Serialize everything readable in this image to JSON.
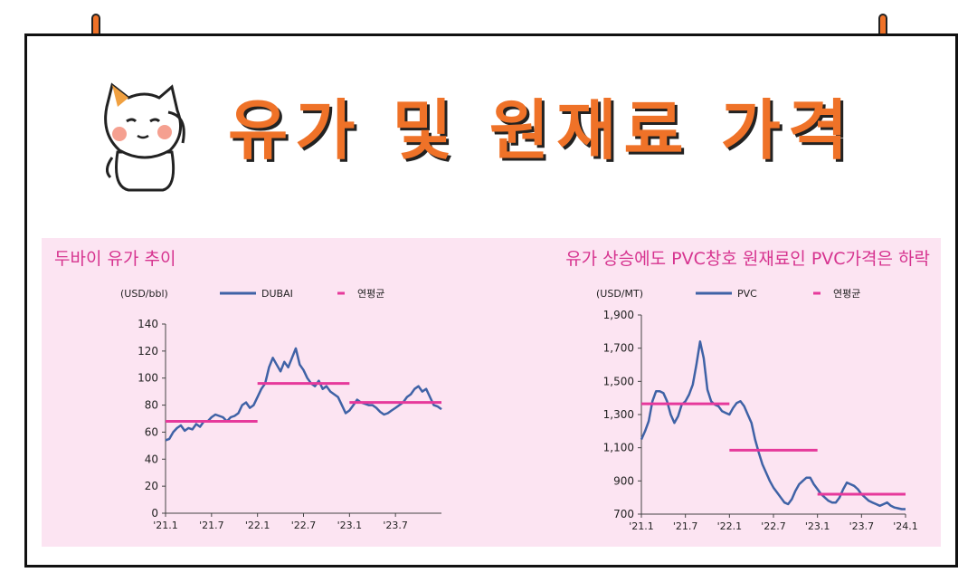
{
  "page": {
    "title": "유가 및 원재료 가격"
  },
  "theme": {
    "accent": "#ef7228",
    "panel_bg": "#fce4f2",
    "panel_title_color": "#d6338f",
    "line_color": "#3f62a6",
    "avg_color": "#e6399b"
  },
  "icons": {
    "pins": "pushpin-icon",
    "mascot": "cat-mascot-icon"
  },
  "chart_data": [
    {
      "type": "line",
      "title": "두바이 유가 추이",
      "unit_label": "(USD/bbl)",
      "legend": [
        "DUBAI",
        "연평균"
      ],
      "ylim": [
        0,
        140
      ],
      "yticks": [
        "0",
        "20",
        "40",
        "60",
        "80",
        "100",
        "120",
        "140"
      ],
      "xlim": [
        0,
        36
      ],
      "xticks": [
        {
          "label": "'21.1",
          "x": 0
        },
        {
          "label": "'21.7",
          "x": 6
        },
        {
          "label": "'22.1",
          "x": 12
        },
        {
          "label": "'22.7",
          "x": 18
        },
        {
          "label": "'23.1",
          "x": 24
        },
        {
          "label": "'23.7",
          "x": 30
        }
      ],
      "series": [
        {
          "name": "DUBAI",
          "x": [
            0,
            0.5,
            1,
            1.5,
            2,
            2.5,
            3,
            3.5,
            4,
            4.5,
            5,
            5.5,
            6,
            6.5,
            7,
            7.5,
            8,
            8.5,
            9,
            9.5,
            10,
            10.5,
            11,
            11.5,
            12,
            12.5,
            13,
            13.5,
            14,
            14.5,
            15,
            15.5,
            16,
            16.5,
            17,
            17.5,
            18,
            18.5,
            19,
            19.5,
            20,
            20.5,
            21,
            21.5,
            22,
            22.5,
            23,
            23.5,
            24,
            24.5,
            25,
            25.5,
            26,
            26.5,
            27,
            27.5,
            28,
            28.5,
            29,
            29.5,
            30,
            30.5,
            31,
            31.5,
            32,
            32.5,
            33,
            33.5,
            34,
            34.5,
            35,
            35.5,
            36
          ],
          "values": [
            54,
            55,
            60,
            63,
            65,
            61,
            63,
            62,
            66,
            64,
            68,
            68,
            71,
            73,
            72,
            71,
            68,
            71,
            72,
            74,
            80,
            82,
            78,
            80,
            86,
            92,
            96,
            108,
            115,
            110,
            105,
            112,
            108,
            115,
            122,
            110,
            106,
            100,
            96,
            94,
            98,
            92,
            94,
            90,
            88,
            86,
            80,
            74,
            76,
            80,
            84,
            82,
            81,
            80,
            80,
            78,
            75,
            73,
            74,
            76,
            78,
            80,
            82,
            86,
            88,
            92,
            94,
            90,
            92,
            86,
            80,
            79,
            77
          ]
        },
        {
          "name": "연평균",
          "segments": [
            {
              "x": [
                0,
                12
              ],
              "y": 68
            },
            {
              "x": [
                12,
                24
              ],
              "y": 96
            },
            {
              "x": [
                24,
                36
              ],
              "y": 82
            }
          ]
        }
      ]
    },
    {
      "type": "line",
      "title": "유가 상승에도 PVC창호 원재료인 PVC가격은 하락",
      "unit_label": "(USD/MT)",
      "legend": [
        "PVC",
        "연평균"
      ],
      "ylim": [
        700,
        1900
      ],
      "yticks": [
        "700",
        "900",
        "1,100",
        "1,300",
        "1,500",
        "1,700",
        "1,900"
      ],
      "xlim": [
        0,
        36
      ],
      "xticks": [
        {
          "label": "'21.1",
          "x": 0
        },
        {
          "label": "'21.7",
          "x": 6
        },
        {
          "label": "'22.1",
          "x": 12
        },
        {
          "label": "'22.7",
          "x": 18
        },
        {
          "label": "'23.1",
          "x": 24
        },
        {
          "label": "'23.7",
          "x": 30
        },
        {
          "label": "'24.1",
          "x": 36
        }
      ],
      "series": [
        {
          "name": "PVC",
          "x": [
            0,
            0.5,
            1,
            1.5,
            2,
            2.5,
            3,
            3.5,
            4,
            4.5,
            5,
            5.5,
            6,
            6.5,
            7,
            7.5,
            8,
            8.5,
            9,
            9.5,
            10,
            10.5,
            11,
            11.5,
            12,
            12.5,
            13,
            13.5,
            14,
            14.5,
            15,
            15.5,
            16,
            16.5,
            17,
            17.5,
            18,
            18.5,
            19,
            19.5,
            20,
            20.5,
            21,
            21.5,
            22,
            22.5,
            23,
            23.5,
            24,
            24.5,
            25,
            25.5,
            26,
            26.5,
            27,
            27.5,
            28,
            28.5,
            29,
            29.5,
            30,
            30.5,
            31,
            31.5,
            32,
            32.5,
            33,
            33.5,
            34,
            34.5,
            35,
            35.5,
            36
          ],
          "values": [
            1150,
            1200,
            1260,
            1380,
            1440,
            1440,
            1430,
            1380,
            1300,
            1250,
            1290,
            1360,
            1380,
            1420,
            1480,
            1600,
            1740,
            1640,
            1450,
            1380,
            1360,
            1350,
            1320,
            1310,
            1300,
            1340,
            1370,
            1380,
            1350,
            1300,
            1250,
            1150,
            1070,
            1000,
            950,
            900,
            860,
            830,
            800,
            770,
            760,
            790,
            840,
            880,
            900,
            920,
            920,
            880,
            850,
            820,
            800,
            780,
            770,
            770,
            800,
            850,
            890,
            880,
            870,
            850,
            820,
            800,
            780,
            770,
            760,
            750,
            760,
            770,
            750,
            740,
            735,
            730,
            730
          ]
        },
        {
          "name": "연평균",
          "segments": [
            {
              "x": [
                0,
                12
              ],
              "y": 1365
            },
            {
              "x": [
                12,
                24
              ],
              "y": 1085
            },
            {
              "x": [
                24,
                36
              ],
              "y": 820
            }
          ]
        }
      ]
    }
  ]
}
